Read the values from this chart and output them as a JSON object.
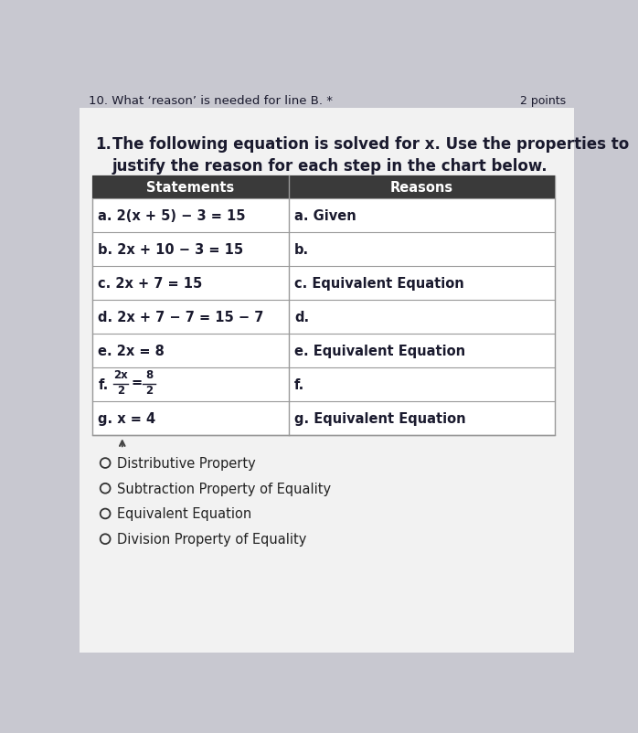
{
  "title_question": "10. What ‘reason’ is needed for line B. *",
  "points_label": "2 points",
  "instruction_number": "1.",
  "instruction_text": "The following equation is solved for x. Use the properties to\njustify the reason for each step in the chart below.",
  "header_col1": "Statements",
  "header_col2": "Reasons",
  "rows": [
    {
      "stmt": "a. 2(x + 5) − 3 = 15",
      "reason": "a. Given"
    },
    {
      "stmt": "b. 2x + 10 − 3 = 15",
      "reason": "b."
    },
    {
      "stmt": "c. 2x + 7 = 15",
      "reason": "c. Equivalent Equation"
    },
    {
      "stmt": "d. 2x + 7 − 7 = 15 − 7",
      "reason": "d."
    },
    {
      "stmt": "e. 2x = 8",
      "reason": "e. Equivalent Equation"
    },
    {
      "stmt": "f_fraction",
      "reason": "f."
    },
    {
      "stmt": "g. x = 4",
      "reason": "g. Equivalent Equation"
    }
  ],
  "choices": [
    "Distributive Property",
    "Subtraction Property of Equality",
    "Equivalent Equation",
    "Division Property of Equality"
  ],
  "page_bg": "#c8c8d0",
  "card_bg": "#f0f0f0",
  "table_bg": "#e8e8ec",
  "header_bg": "#3a3a3a",
  "header_text_color": "#ffffff",
  "row_line_color": "#999999",
  "text_color": "#1a1a2e",
  "choice_circle_color": "#333333",
  "choice_text_color": "#222222"
}
